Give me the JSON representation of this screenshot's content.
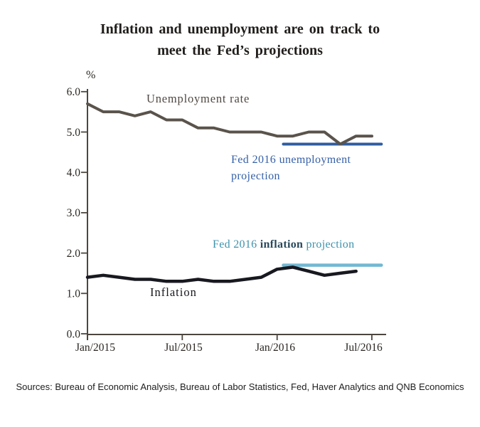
{
  "title": {
    "line1": "Inflation and unemployment  are on track to",
    "line2": "meet the Fed’s projections"
  },
  "labels": {
    "unemployment_series": "Unemployment rate",
    "inflation_series": "Inflation",
    "fed_unemployment_projection": "Fed 2016 unemployment projection",
    "fed_inflation_part1": "Fed 2016 ",
    "fed_inflation_part2": "inflation",
    "fed_inflation_part3": " projection"
  },
  "sources": "Sources: Bureau of Economic Analysis, Bureau of Labor Statistics,  Fed, Haver Analytics and QNB Economics",
  "chart_data": {
    "type": "line",
    "title": "Inflation and unemployment are on track to meet the Fed's projections",
    "ylabel": "%",
    "ylim": [
      0.0,
      6.0
    ],
    "grid": false,
    "y_ticks": [
      "6.0",
      "5.0",
      "4.0",
      "3.0",
      "2.0",
      "1.0",
      "0.0"
    ],
    "x_ticks": [
      "Jan/2015",
      "Jul/2015",
      "Jan/2016",
      "Jul/2016"
    ],
    "x_start": "Jan 2015",
    "x_interval": "monthly",
    "series": [
      {
        "id": "unemployment",
        "name": "Unemployment rate",
        "color": "#5a534b",
        "start_month": 0,
        "values": [
          5.7,
          5.5,
          5.5,
          5.4,
          5.5,
          5.3,
          5.3,
          5.1,
          5.1,
          5.0,
          5.0,
          5.0,
          4.9,
          4.9,
          5.0,
          5.0,
          4.7,
          4.9,
          4.9
        ]
      },
      {
        "id": "inflation",
        "name": "Inflation",
        "color": "#181820",
        "start_month": 0,
        "values": [
          1.4,
          1.45,
          1.4,
          1.35,
          1.35,
          1.3,
          1.3,
          1.35,
          1.3,
          1.3,
          1.35,
          1.4,
          1.6,
          1.65,
          1.55,
          1.45,
          1.5,
          1.55
        ]
      }
    ],
    "projections": [
      {
        "id": "fed-unemployment",
        "name": "Fed 2016 unemployment projection",
        "color": "#2f5da1",
        "value": 4.7,
        "start_month": 12.4,
        "end_month": 18.6,
        "span": "Jan 2016 - Jul 2016"
      },
      {
        "id": "fed-inflation",
        "name": "Fed 2016 inflation projection",
        "color": "#72b8d3",
        "value": 1.7,
        "start_month": 12.4,
        "end_month": 18.6,
        "span": "Jan 2016 - Jul 2016"
      }
    ]
  }
}
